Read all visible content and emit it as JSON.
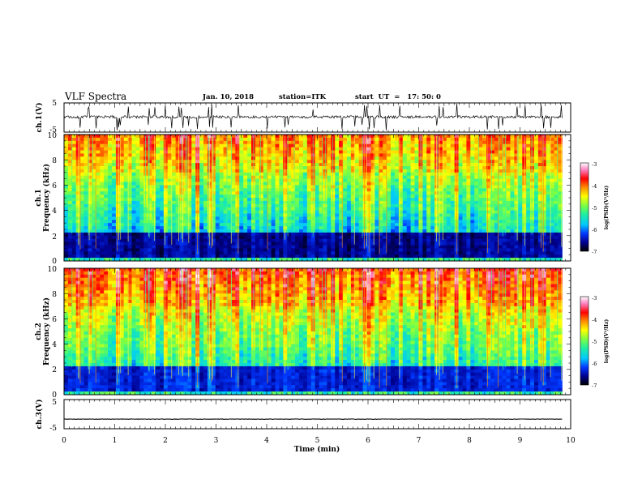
{
  "header": {
    "title": "VLF Spectra",
    "date": "Jan. 10, 2018",
    "station": "station=ITK",
    "start": "start  UT  =   17: 50: 0"
  },
  "chart_data": [
    {
      "type": "line",
      "name": "ch1-waveform",
      "ylabel": "ch.1(V)",
      "ylim": [
        -5,
        5
      ],
      "yticks": [
        "5",
        "-5"
      ],
      "xlim": [
        0,
        10
      ],
      "baseline": 0.2,
      "data_end_min": 9.83
    },
    {
      "type": "heatmap",
      "name": "ch1-spectrogram",
      "ylabel_line1": "ch.1",
      "ylabel_line2": "Frequency (kHz)",
      "xlim": [
        0,
        10
      ],
      "ylim": [
        0,
        10
      ],
      "yticks": [
        "10",
        "8",
        "6",
        "4",
        "2",
        "0"
      ],
      "data_end_min": 9.83,
      "colorbar": {
        "label": "log(PSD)(V²/Hz)",
        "range": [
          -7,
          -3
        ],
        "ticks": [
          "-3",
          "-4",
          "-5",
          "-6",
          "-7"
        ],
        "colors": [
          "#000000",
          "#000090",
          "#0038ff",
          "#00c8ff",
          "#20f0a0",
          "#80ff40",
          "#ffff00",
          "#ff9000",
          "#ff0000",
          "#ff80c0",
          "#ffffff"
        ]
      }
    },
    {
      "type": "heatmap",
      "name": "ch2-spectrogram",
      "ylabel_line1": "ch.2",
      "ylabel_line2": "Frequency (kHz)",
      "xlim": [
        0,
        10
      ],
      "ylim": [
        0,
        10
      ],
      "yticks": [
        "10",
        "8",
        "6",
        "4",
        "2",
        "0"
      ],
      "data_end_min": 9.83,
      "colorbar": {
        "label": "log(PSD)(V²/Hz)",
        "range": [
          -7,
          -3
        ],
        "ticks": [
          "-3",
          "-4",
          "-5",
          "-6",
          "-7"
        ],
        "colors": [
          "#000000",
          "#000090",
          "#0038ff",
          "#00c8ff",
          "#20f0a0",
          "#80ff40",
          "#ffff00",
          "#ff9000",
          "#ff0000",
          "#ff80c0",
          "#ffffff"
        ]
      }
    },
    {
      "type": "line",
      "name": "ch3-waveform",
      "ylabel": "ch.3(V)",
      "ylim": [
        -5,
        5
      ],
      "yticks": [
        "5",
        "-5"
      ],
      "xlim": [
        0,
        10
      ],
      "baseline": -1.7,
      "data_end_min": 9.83
    }
  ],
  "xaxis": {
    "label": "Time (min)",
    "ticks": [
      "0",
      "1",
      "2",
      "3",
      "4",
      "5",
      "6",
      "7",
      "8",
      "9",
      "10"
    ]
  }
}
